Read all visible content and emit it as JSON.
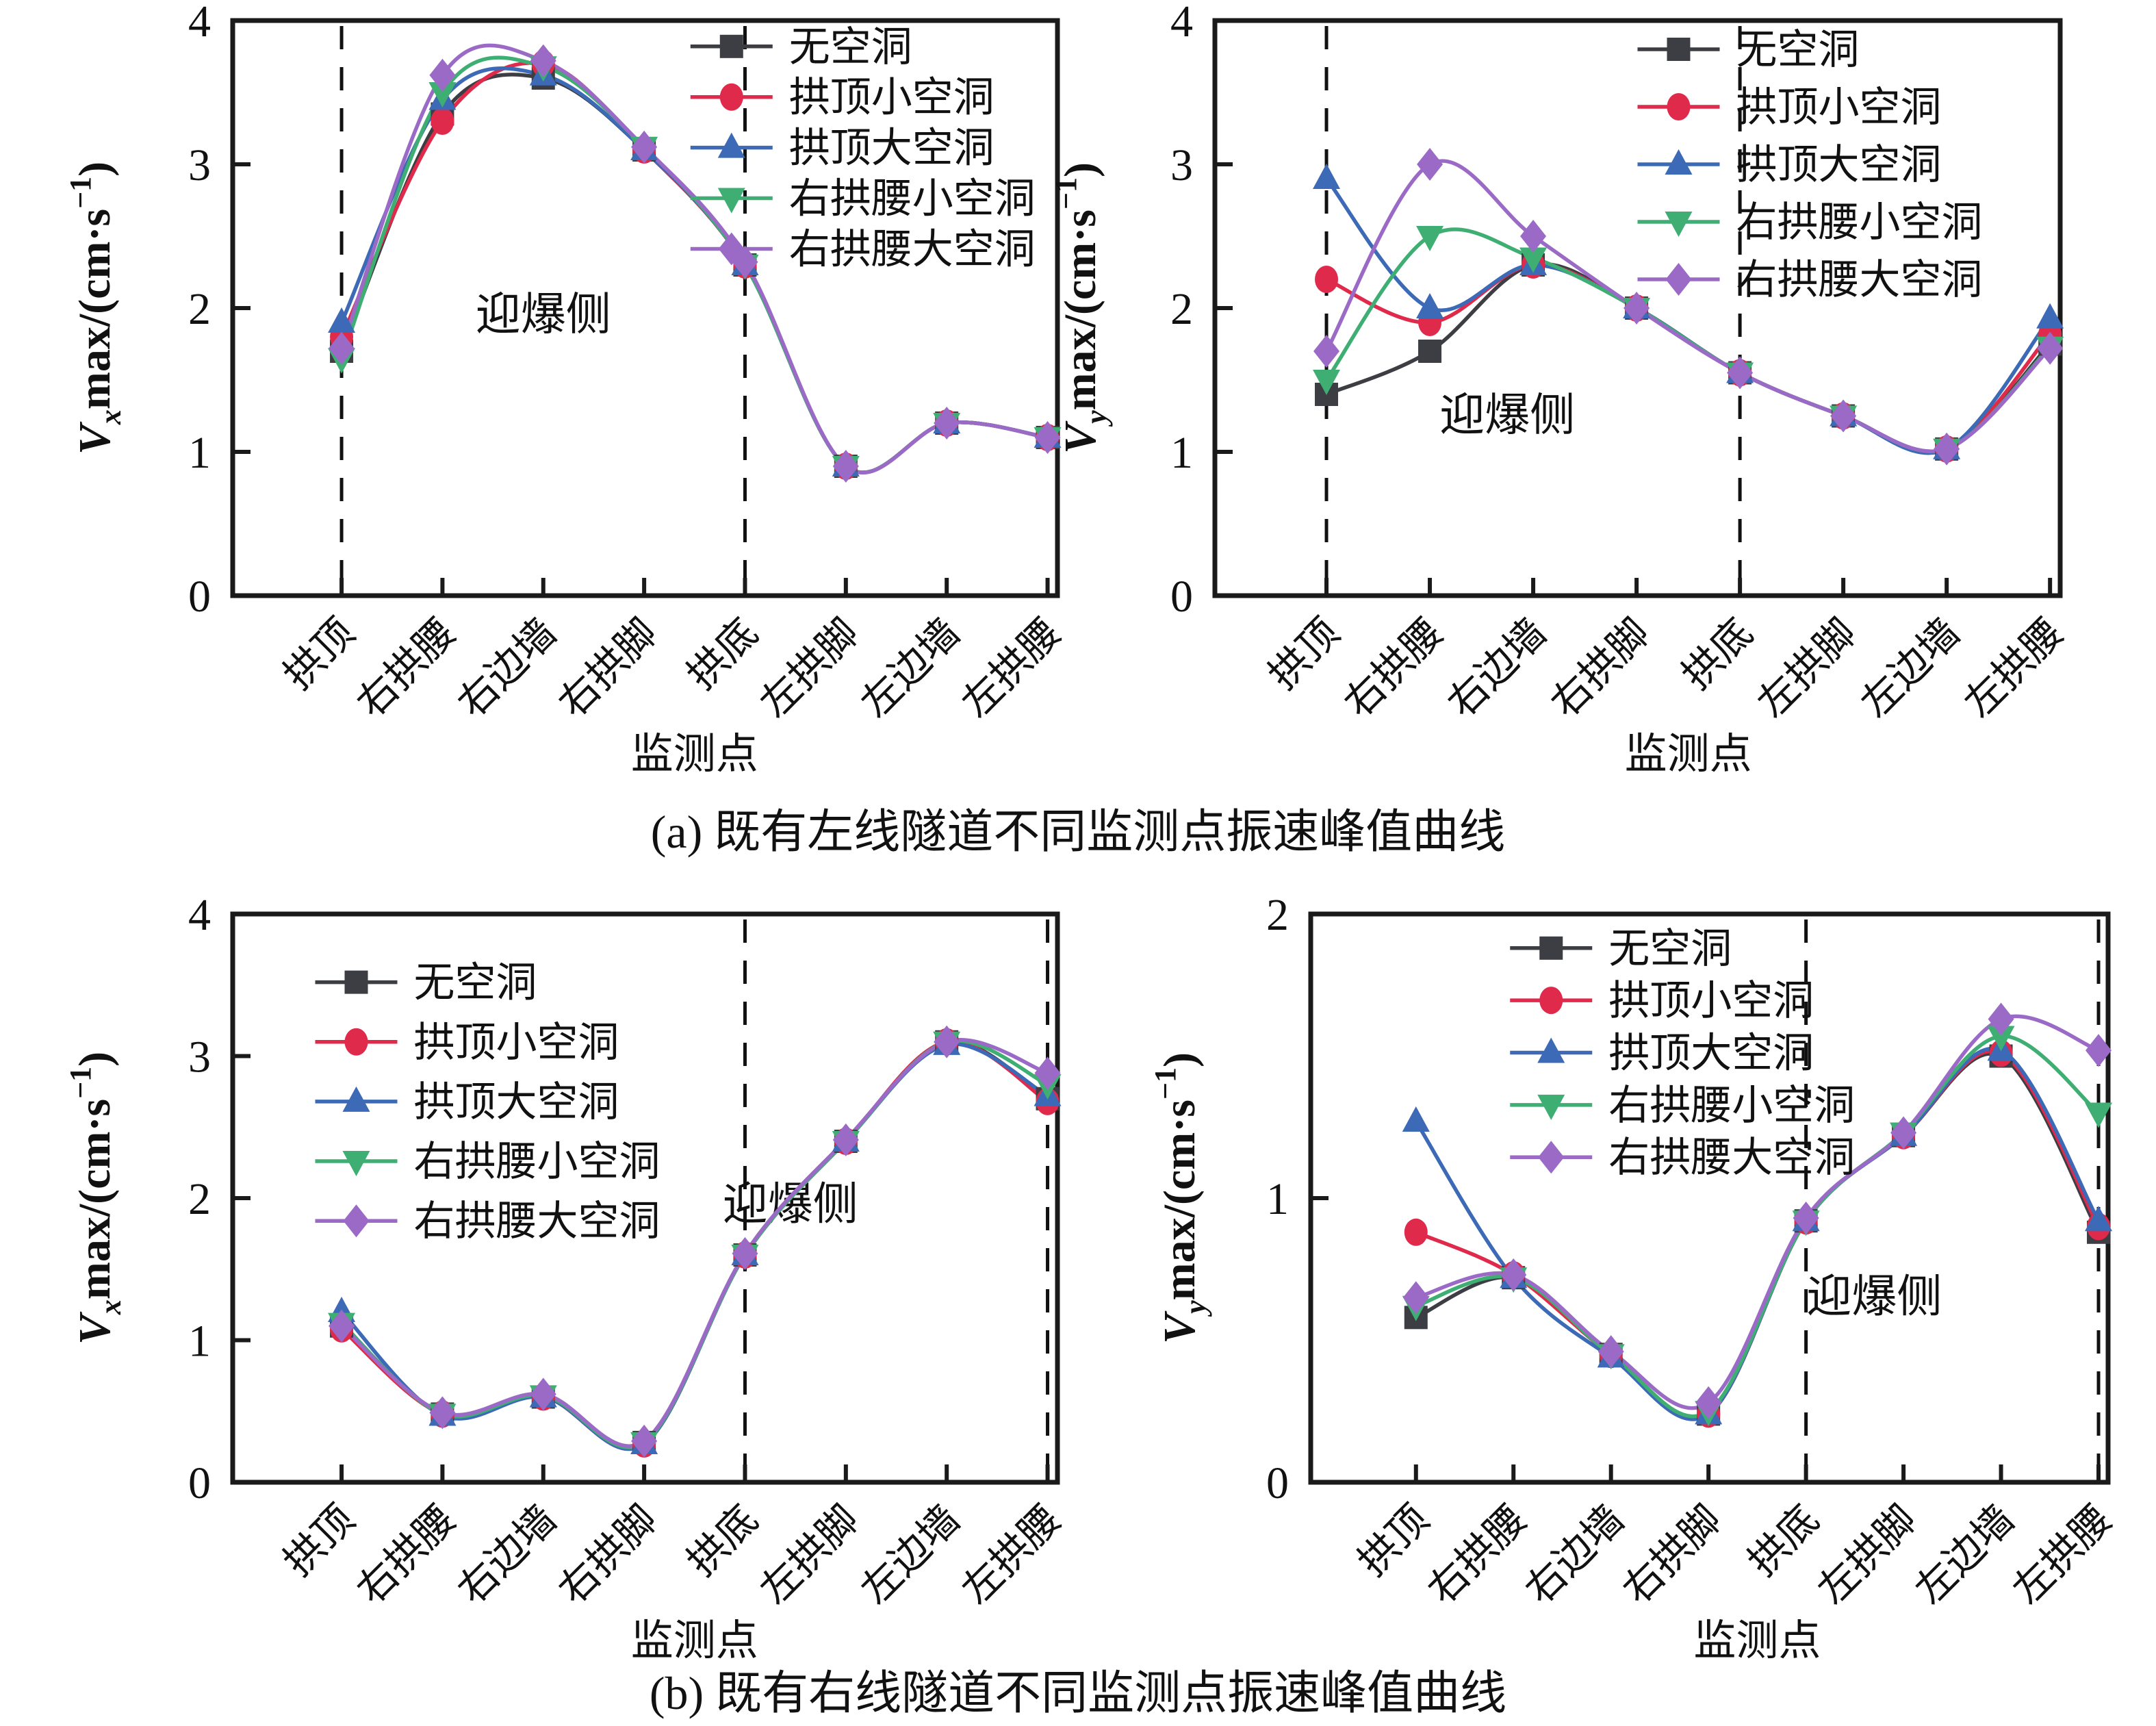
{
  "captions": {
    "a": "(a) 既有左线隧道不同监测点振速峰值曲线",
    "b": "(b) 既有右线隧道不同监测点振速峰值曲线"
  },
  "chart_data": [
    {
      "id": "left-tunnel-vx",
      "panel": "top-left",
      "type": "line",
      "xlabel": "监测点",
      "ylabel": "Vxmax/(cm·s⁻¹)",
      "ylabel_parts": {
        "v": "V",
        "sub": "x",
        "mid": "max/(cm·s",
        "sup": "−1",
        "end": ")"
      },
      "ylim": [
        0,
        4
      ],
      "yticks": [
        0,
        1,
        2,
        3,
        4
      ],
      "categories": [
        "拱顶",
        "右拱腰",
        "右边墙",
        "右拱脚",
        "拱底",
        "左拱脚",
        "左边墙",
        "左拱腰"
      ],
      "series": [
        {
          "name": "无空洞",
          "marker": "square",
          "color": "#3d3d44",
          "values": [
            1.7,
            3.35,
            3.6,
            3.1,
            2.3,
            0.9,
            1.2,
            1.1
          ]
        },
        {
          "name": "拱顶小空洞",
          "marker": "circle",
          "color": "#e02a4c",
          "values": [
            1.8,
            3.3,
            3.7,
            3.1,
            2.3,
            0.9,
            1.2,
            1.1
          ]
        },
        {
          "name": "拱顶大空洞",
          "marker": "triangle-up",
          "color": "#3c6ab6",
          "values": [
            1.9,
            3.45,
            3.62,
            3.1,
            2.3,
            0.9,
            1.2,
            1.1
          ]
        },
        {
          "name": "右拱腰小空洞",
          "marker": "triangle-down",
          "color": "#3fae73",
          "values": [
            1.65,
            3.5,
            3.68,
            3.12,
            2.3,
            0.9,
            1.2,
            1.1
          ]
        },
        {
          "name": "右拱腰大空洞",
          "marker": "diamond",
          "color": "#9a6ac6",
          "values": [
            1.72,
            3.62,
            3.72,
            3.12,
            2.32,
            0.9,
            1.2,
            1.1
          ]
        }
      ],
      "dashed_vlines_at_category_index": [
        0,
        4
      ],
      "annotation": {
        "text": "迎爆侧",
        "x_index": 2.0,
        "y": 1.85
      },
      "legend_position": "upper-right-inside"
    },
    {
      "id": "left-tunnel-vy",
      "panel": "top-right",
      "type": "line",
      "xlabel": "监测点",
      "ylabel": "Vymax/(cm·s⁻¹)",
      "ylabel_parts": {
        "v": "V",
        "sub": "y",
        "mid": "max/(cm·s",
        "sup": "−1",
        "end": ")"
      },
      "ylim": [
        0,
        4
      ],
      "yticks": [
        0,
        1,
        2,
        3,
        4
      ],
      "categories": [
        "拱顶",
        "右拱腰",
        "右边墙",
        "右拱脚",
        "拱底",
        "左拱脚",
        "左边墙",
        "左拱腰"
      ],
      "series": [
        {
          "name": "无空洞",
          "marker": "square",
          "color": "#3d3d44",
          "values": [
            1.4,
            1.7,
            2.3,
            2.0,
            1.55,
            1.25,
            1.02,
            1.75
          ]
        },
        {
          "name": "拱顶小空洞",
          "marker": "circle",
          "color": "#e02a4c",
          "values": [
            2.2,
            1.9,
            2.3,
            2.0,
            1.55,
            1.25,
            1.02,
            1.82
          ]
        },
        {
          "name": "拱顶大空洞",
          "marker": "triangle-up",
          "color": "#3c6ab6",
          "values": [
            2.9,
            2.0,
            2.3,
            2.0,
            1.55,
            1.25,
            1.02,
            1.93
          ]
        },
        {
          "name": "右拱腰小空洞",
          "marker": "triangle-down",
          "color": "#3fae73",
          "values": [
            1.5,
            2.5,
            2.35,
            2.0,
            1.55,
            1.25,
            1.02,
            1.73
          ]
        },
        {
          "name": "右拱腰大空洞",
          "marker": "diamond",
          "color": "#9a6ac6",
          "values": [
            1.7,
            3.0,
            2.5,
            2.0,
            1.55,
            1.25,
            1.02,
            1.72
          ]
        }
      ],
      "dashed_vlines_at_category_index": [
        0,
        4
      ],
      "annotation": {
        "text": "迎爆侧",
        "x_index": 1.75,
        "y": 1.15
      },
      "legend_position": "upper-right-inside"
    },
    {
      "id": "right-tunnel-vx",
      "panel": "bottom-left",
      "type": "line",
      "xlabel": "监测点",
      "ylabel": "Vxmax/(cm·s⁻¹)",
      "ylabel_parts": {
        "v": "V",
        "sub": "x",
        "mid": "max/(cm·s",
        "sup": "−1",
        "end": ")"
      },
      "ylim": [
        0,
        4
      ],
      "yticks": [
        0,
        1,
        2,
        3,
        4
      ],
      "categories": [
        "拱顶",
        "右拱腰",
        "右边墙",
        "右拱脚",
        "拱底",
        "左拱脚",
        "左边墙",
        "左拱腰"
      ],
      "series": [
        {
          "name": "无空洞",
          "marker": "square",
          "color": "#3d3d44",
          "values": [
            1.1,
            0.48,
            0.6,
            0.28,
            1.6,
            2.4,
            3.1,
            2.7
          ]
        },
        {
          "name": "拱顶小空洞",
          "marker": "circle",
          "color": "#e02a4c",
          "values": [
            1.08,
            0.48,
            0.6,
            0.27,
            1.6,
            2.4,
            3.1,
            2.68
          ]
        },
        {
          "name": "拱顶大空洞",
          "marker": "triangle-up",
          "color": "#3c6ab6",
          "values": [
            1.2,
            0.47,
            0.6,
            0.27,
            1.6,
            2.4,
            3.08,
            2.72
          ]
        },
        {
          "name": "右拱腰小空洞",
          "marker": "triangle-down",
          "color": "#3fae73",
          "values": [
            1.12,
            0.48,
            0.61,
            0.28,
            1.6,
            2.4,
            3.1,
            2.8
          ]
        },
        {
          "name": "右拱腰大空洞",
          "marker": "diamond",
          "color": "#9a6ac6",
          "values": [
            1.1,
            0.49,
            0.62,
            0.29,
            1.61,
            2.41,
            3.1,
            2.88
          ]
        }
      ],
      "dashed_vlines_at_category_index": [
        4,
        7
      ],
      "annotation": {
        "text": "迎爆侧",
        "x_index": 4.45,
        "y": 1.85
      },
      "legend_position": "upper-left-inside"
    },
    {
      "id": "right-tunnel-vy",
      "panel": "bottom-right",
      "type": "line",
      "xlabel": "监测点",
      "ylabel": "Vymax/(cm·s⁻¹)",
      "ylabel_parts": {
        "v": "V",
        "sub": "y",
        "mid": "max/(cm·s",
        "sup": "−1",
        "end": ")"
      },
      "ylim": [
        0,
        2
      ],
      "yticks": [
        0,
        1,
        2
      ],
      "categories": [
        "拱顶",
        "右拱腰",
        "右边墙",
        "右拱脚",
        "拱底",
        "左拱脚",
        "左边墙",
        "左拱腰"
      ],
      "series": [
        {
          "name": "无空洞",
          "marker": "square",
          "color": "#3d3d44",
          "values": [
            0.58,
            0.72,
            0.45,
            0.24,
            0.92,
            1.22,
            1.5,
            0.88
          ]
        },
        {
          "name": "拱顶小空洞",
          "marker": "circle",
          "color": "#e02a4c",
          "values": [
            0.88,
            0.73,
            0.45,
            0.24,
            0.92,
            1.22,
            1.51,
            0.9
          ]
        },
        {
          "name": "拱顶大空洞",
          "marker": "triangle-up",
          "color": "#3c6ab6",
          "values": [
            1.27,
            0.72,
            0.44,
            0.24,
            0.92,
            1.22,
            1.52,
            0.92
          ]
        },
        {
          "name": "右拱腰小空洞",
          "marker": "triangle-down",
          "color": "#3fae73",
          "values": [
            0.62,
            0.72,
            0.45,
            0.25,
            0.92,
            1.23,
            1.57,
            1.3
          ]
        },
        {
          "name": "右拱腰大空洞",
          "marker": "diamond",
          "color": "#9a6ac6",
          "values": [
            0.65,
            0.73,
            0.46,
            0.28,
            0.93,
            1.23,
            1.63,
            1.52
          ]
        }
      ],
      "dashed_vlines_at_category_index": [
        4,
        7
      ],
      "annotation": {
        "text": "迎爆侧",
        "x_index": 4.7,
        "y": 0.6
      },
      "legend_position": "upper-middle-inside"
    }
  ]
}
